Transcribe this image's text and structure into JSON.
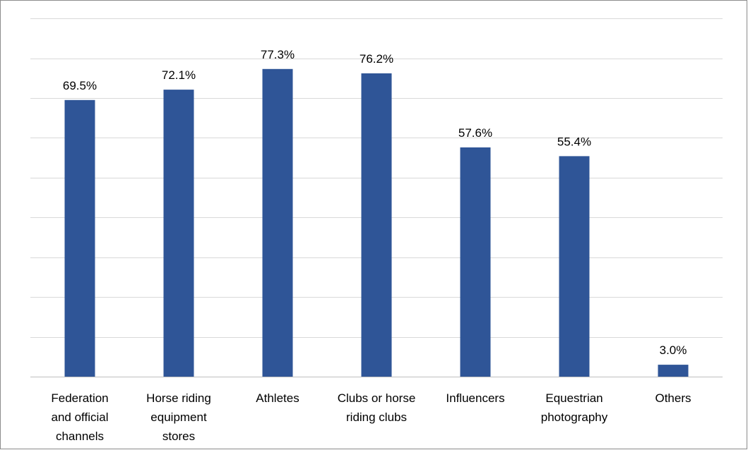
{
  "chart_data": {
    "type": "bar",
    "title": "",
    "xlabel": "",
    "ylabel": "",
    "categories": [
      [
        "Federation",
        "and official",
        "channels"
      ],
      [
        "Horse riding",
        "equipment",
        "stores"
      ],
      [
        "Athletes"
      ],
      [
        "Clubs or horse",
        "riding clubs"
      ],
      [
        "Influencers"
      ],
      [
        "Equestrian",
        "photography"
      ],
      [
        "Others"
      ]
    ],
    "values": [
      69.5,
      72.1,
      77.3,
      76.2,
      57.6,
      55.4,
      3.0
    ],
    "data_labels": [
      "69.5%",
      "72.1%",
      "77.3%",
      "76.2%",
      "57.6%",
      "55.4%",
      "3.0%"
    ],
    "ylim": [
      0,
      90
    ],
    "y_gridline_step": 10,
    "y_axis_visible": false,
    "grid": true,
    "legend": "none",
    "bar_color": "#2f5597"
  }
}
